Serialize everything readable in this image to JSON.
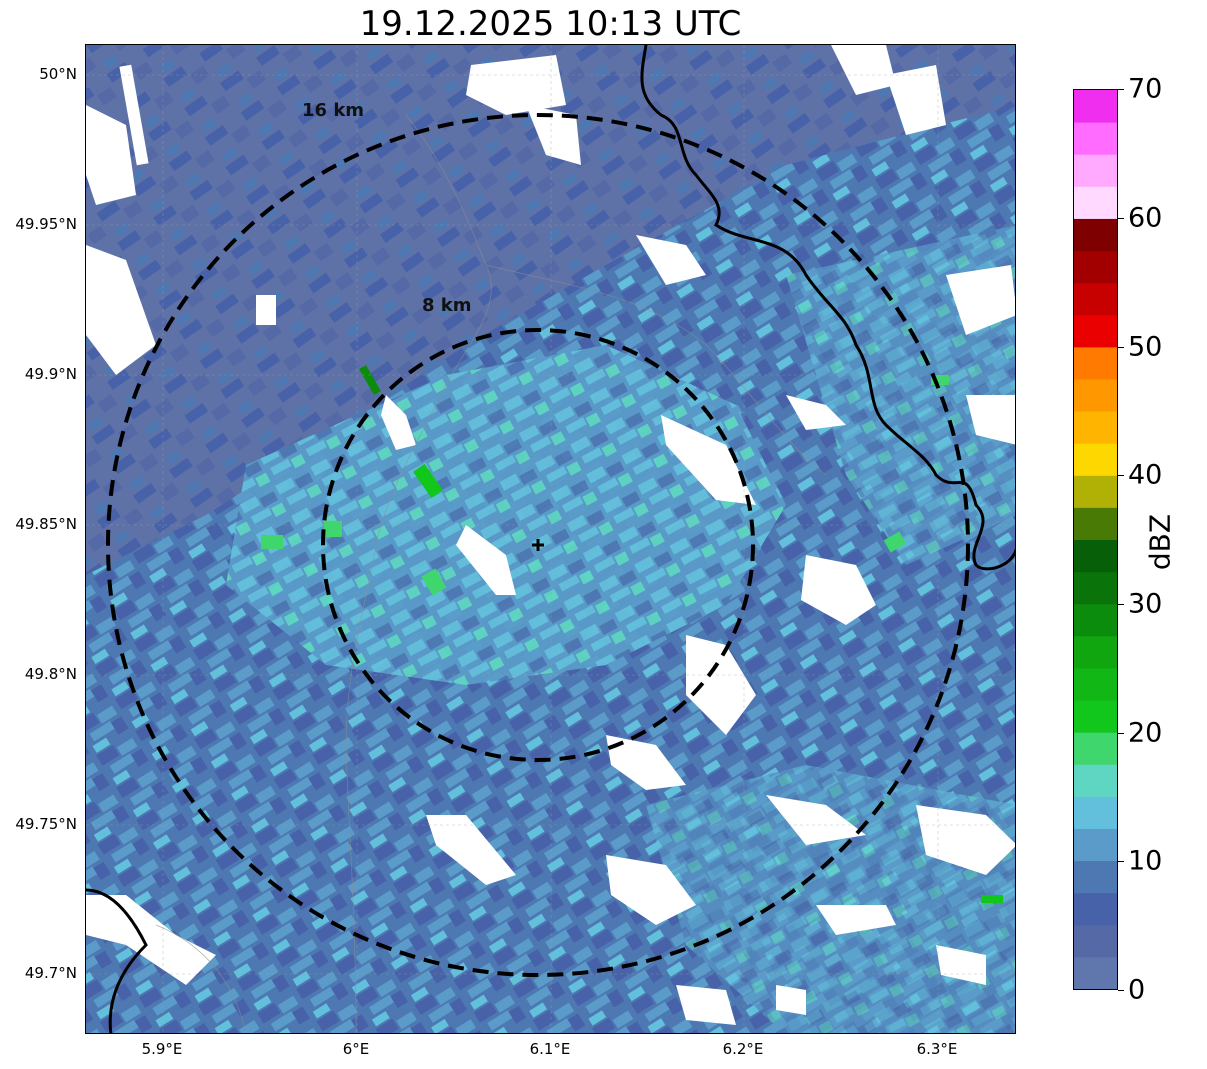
{
  "title": "19.12.2025 10:13 UTC",
  "map": {
    "lat_range": [
      49.68,
      50.01
    ],
    "lon_range": [
      5.86,
      6.34
    ],
    "lat_ticks": [
      "50°N",
      "49.95°N",
      "49.9°N",
      "49.85°N",
      "49.8°N",
      "49.75°N",
      "49.7°N"
    ],
    "lon_ticks": [
      "5.9°E",
      "6°E",
      "6.1°E",
      "6.2°E",
      "6.3°E"
    ],
    "radar_site": {
      "lat": 49.843,
      "lon": 6.093
    },
    "rings": [
      {
        "label": "8 km",
        "radius_km": 8
      },
      {
        "label": "16 km",
        "radius_km": 16
      }
    ]
  },
  "colorbar": {
    "label": "dBZ",
    "range": [
      0,
      70
    ],
    "ticks": [
      "0",
      "10",
      "20",
      "30",
      "40",
      "50",
      "60",
      "70"
    ],
    "colors": [
      "#6077ad",
      "#5569a6",
      "#4762a8",
      "#4d78b2",
      "#5a9bc9",
      "#63c0dc",
      "#5fd6c2",
      "#3fd66e",
      "#12c71c",
      "#11b815",
      "#0fa60f",
      "#0c8c0c",
      "#0a730a",
      "#075f07",
      "#4a7a06",
      "#b0b005",
      "#ffd700",
      "#ffb400",
      "#ff9800",
      "#ff7a00",
      "#ea0000",
      "#c70000",
      "#a20000",
      "#7f0000",
      "#ffd9ff",
      "#ffaaff",
      "#ff6cff",
      "#f02ef0"
    ]
  }
}
